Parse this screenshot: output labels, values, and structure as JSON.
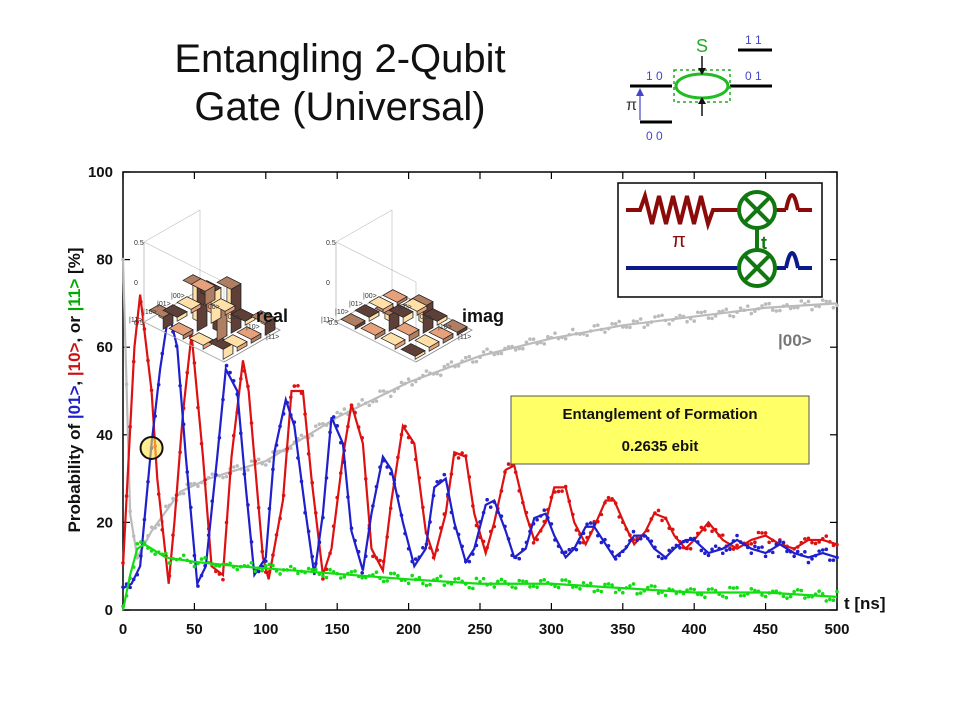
{
  "slide": {
    "title_line1": "Entangling 2-Qubit",
    "title_line2": "Gate (Universal)"
  },
  "level_diagram": {
    "s_label": "S",
    "pi_label": "π",
    "level_00": "0 0",
    "level_10": "1 0",
    "level_01": "0 1",
    "level_11": "1 1"
  },
  "tomography": {
    "real_label": "real",
    "imag_label": "imag",
    "basis_labels": [
      "|00>",
      "|01>",
      "|10>",
      "|11>"
    ],
    "real_ticks": [
      "0.5",
      "0",
      "0.5"
    ],
    "imag_ticks": [
      "0.5",
      "0",
      "-0.5"
    ]
  },
  "circuit": {
    "pi_label": "π",
    "t_label": "t"
  },
  "box": {
    "title": "Entanglement of Formation",
    "value": "0.2635 ebit"
  },
  "chart_data": {
    "type": "scatter",
    "title": "",
    "xlabel": "t [ns]",
    "ylabel_parts": [
      "Probability of ",
      "|01>",
      ", ",
      "|10>",
      ", or ",
      "|11>",
      " [%]"
    ],
    "ylabel_colors": [
      "#111111",
      "#1f1fcc",
      "#111111",
      "#cc1010",
      "#111111",
      "#00aa00",
      "#111111"
    ],
    "xlim": [
      0,
      500
    ],
    "ylim": [
      0,
      100
    ],
    "xticks": [
      0,
      50,
      100,
      150,
      200,
      250,
      300,
      350,
      400,
      450,
      500
    ],
    "yticks": [
      0,
      20,
      40,
      60,
      80,
      100
    ],
    "annotation_00": "|00>",
    "marker_circle": {
      "x": 20,
      "y": 37
    },
    "series": [
      {
        "color": "#bbbbbb",
        "x": [
          0,
          5,
          10,
          20,
          40,
          60,
          80,
          100,
          150,
          200,
          250,
          300,
          350,
          400,
          450,
          500
        ],
        "y": [
          80,
          22,
          12,
          18,
          27,
          30,
          32,
          34,
          44,
          52,
          58,
          62,
          65,
          67,
          69,
          70
        ]
      },
      {
        "color": "#dd1111",
        "x": [
          0,
          8,
          12,
          20,
          24,
          32,
          36,
          42,
          48,
          56,
          62,
          70,
          76,
          84,
          88,
          98,
          102,
          112,
          118,
          126,
          132,
          140,
          146,
          154,
          160,
          168,
          174,
          182,
          188,
          196,
          204,
          212,
          218,
          226,
          232,
          240,
          246,
          254,
          260,
          268,
          274,
          282,
          288,
          296,
          302,
          310,
          316,
          324,
          330,
          338,
          344,
          352,
          358,
          366,
          372,
          380,
          386,
          394,
          400,
          410,
          420,
          430,
          440,
          450,
          460,
          470,
          480,
          490,
          500
        ],
        "y": [
          10,
          60,
          72,
          50,
          30,
          6,
          20,
          45,
          63,
          35,
          10,
          8,
          35,
          57,
          50,
          12,
          7,
          25,
          50,
          50,
          30,
          8,
          14,
          35,
          47,
          38,
          14,
          9,
          25,
          42,
          38,
          18,
          12,
          22,
          36,
          35,
          22,
          13,
          20,
          32,
          33,
          22,
          16,
          20,
          28,
          28,
          20,
          15,
          19,
          25,
          25,
          19,
          15,
          18,
          22,
          21,
          17,
          14,
          16,
          20,
          16,
          14,
          16,
          17,
          15,
          14,
          16,
          16,
          15
        ]
      },
      {
        "color": "#1f1fcc",
        "x": [
          0,
          6,
          12,
          20,
          26,
          32,
          38,
          44,
          52,
          58,
          66,
          72,
          80,
          86,
          92,
          100,
          106,
          114,
          120,
          128,
          134,
          140,
          146,
          154,
          160,
          168,
          174,
          182,
          188,
          196,
          204,
          212,
          218,
          226,
          232,
          240,
          246,
          254,
          260,
          268,
          274,
          282,
          288,
          296,
          302,
          310,
          316,
          324,
          330,
          338,
          344,
          352,
          358,
          366,
          372,
          380,
          386,
          394,
          400,
          410,
          420,
          430,
          440,
          450,
          460,
          470,
          480,
          490,
          500
        ],
        "y": [
          5,
          6,
          10,
          38,
          55,
          68,
          60,
          35,
          6,
          10,
          35,
          55,
          50,
          28,
          8,
          12,
          36,
          48,
          42,
          22,
          8,
          22,
          44,
          38,
          18,
          9,
          22,
          35,
          32,
          20,
          10,
          14,
          28,
          30,
          20,
          11,
          14,
          24,
          25,
          18,
          12,
          14,
          21,
          22,
          17,
          12,
          14,
          19,
          19,
          15,
          12,
          14,
          17,
          17,
          14,
          12,
          14,
          16,
          16,
          13,
          14,
          16,
          14,
          13,
          15,
          13,
          12,
          13,
          12
        ]
      },
      {
        "color": "#11dd11",
        "x": [
          0,
          5,
          10,
          15,
          20,
          30,
          50,
          80,
          120,
          160,
          200,
          250,
          300,
          350,
          400,
          450,
          500
        ],
        "y": [
          0,
          8,
          14,
          15,
          14,
          12,
          11,
          10,
          9,
          8,
          7,
          6,
          6,
          5,
          4,
          4,
          3
        ]
      }
    ]
  }
}
